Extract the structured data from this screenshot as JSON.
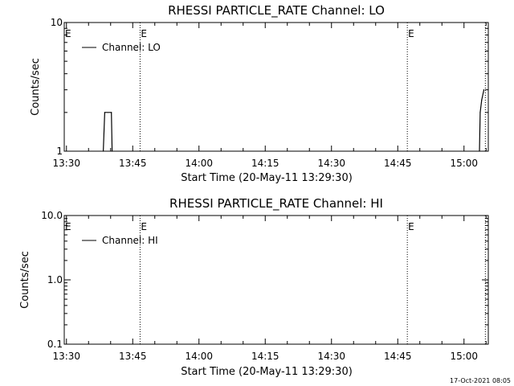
{
  "footer_date": "17-Oct-2021 08:05",
  "chart_data": [
    {
      "type": "line",
      "title": "RHESSI PARTICLE_RATE Channel: LO",
      "xlabel": "Start Time (20-May-11 13:29:30)",
      "ylabel": "Counts/sec",
      "yscale": "log",
      "ylim": [
        1,
        10
      ],
      "y_ticks": [
        {
          "value": 1,
          "label": "1"
        },
        {
          "value": 10,
          "label": "10"
        }
      ],
      "xlim": [
        "13:29:30",
        "15:05:30"
      ],
      "x_ticks": [
        "13:30",
        "13:45",
        "14:00",
        "14:15",
        "14:30",
        "14:45",
        "15:00"
      ],
      "event_lines": [
        {
          "time": "13:46:40",
          "marker": "E"
        },
        {
          "time": "14:47:10",
          "marker": "E"
        },
        {
          "time": "15:04:50",
          "marker": ""
        }
      ],
      "corner_marker": "E",
      "legend": {
        "entries": [
          "Channel: LO"
        ],
        "position": "top-left"
      },
      "series": [
        {
          "name": "Channel: LO",
          "points": [
            {
              "time": "13:38:20",
              "value": 1
            },
            {
              "time": "13:38:40",
              "value": 2
            },
            {
              "time": "13:40:10",
              "value": 2
            },
            {
              "time": "13:40:20",
              "value": 1
            },
            {
              "time": "15:03:30",
              "value": 1
            },
            {
              "time": "15:03:40",
              "value": 2
            },
            {
              "time": "15:04:00",
              "value": 2.5
            },
            {
              "time": "15:04:30",
              "value": 3
            }
          ]
        }
      ]
    },
    {
      "type": "line",
      "title": "RHESSI PARTICLE_RATE Channel: HI",
      "xlabel": "Start Time (20-May-11 13:29:30)",
      "ylabel": "Counts/sec",
      "yscale": "log",
      "ylim": [
        0.1,
        10
      ],
      "y_ticks": [
        {
          "value": 0.1,
          "label": "0.1"
        },
        {
          "value": 1,
          "label": "1.0"
        },
        {
          "value": 10,
          "label": "10.0"
        }
      ],
      "xlim": [
        "13:29:30",
        "15:05:30"
      ],
      "x_ticks": [
        "13:30",
        "13:45",
        "14:00",
        "14:15",
        "14:30",
        "14:45",
        "15:00"
      ],
      "event_lines": [
        {
          "time": "13:46:40",
          "marker": "E"
        },
        {
          "time": "14:47:10",
          "marker": "E"
        },
        {
          "time": "15:04:50",
          "marker": ""
        }
      ],
      "corner_marker": "E",
      "legend": {
        "entries": [
          "Channel: HI"
        ],
        "position": "top-left"
      },
      "series": [
        {
          "name": "Channel: HI",
          "points": []
        }
      ]
    }
  ]
}
